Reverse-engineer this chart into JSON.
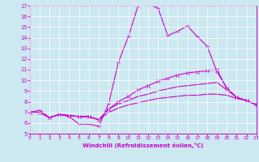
{
  "xlabel": "Windchill (Refroidissement éolien,°C)",
  "bg_color": "#cce8f0",
  "line_color": "#cc00cc",
  "xlim": [
    0,
    23
  ],
  "ylim": [
    5,
    17
  ],
  "xticks": [
    0,
    1,
    2,
    3,
    4,
    5,
    6,
    7,
    8,
    9,
    10,
    11,
    12,
    13,
    14,
    15,
    16,
    17,
    18,
    19,
    20,
    21,
    22,
    23
  ],
  "yticks": [
    5,
    6,
    7,
    8,
    9,
    10,
    11,
    12,
    13,
    14,
    15,
    16,
    17
  ],
  "series": [
    [
      7.0,
      7.2,
      6.5,
      6.8,
      6.6,
      5.9,
      5.9,
      5.7,
      7.8,
      11.7,
      14.1,
      17.0,
      17.1,
      16.8,
      14.2,
      14.6,
      15.1,
      14.1,
      13.2,
      10.8,
      9.3,
      8.4,
      8.1,
      7.7
    ],
    [
      7.0,
      7.0,
      6.5,
      6.8,
      6.7,
      6.6,
      6.6,
      6.3,
      7.3,
      8.0,
      8.5,
      9.1,
      9.5,
      9.9,
      10.2,
      10.5,
      10.7,
      10.8,
      10.9,
      11.0,
      9.2,
      8.4,
      8.1,
      7.7
    ],
    [
      7.0,
      7.0,
      6.5,
      6.8,
      6.7,
      6.6,
      6.6,
      6.3,
      7.3,
      7.8,
      8.1,
      8.5,
      8.7,
      9.0,
      9.2,
      9.4,
      9.5,
      9.6,
      9.7,
      9.8,
      9.1,
      8.4,
      8.1,
      7.7
    ],
    [
      7.0,
      7.0,
      6.5,
      6.8,
      6.7,
      6.6,
      6.6,
      6.3,
      7.0,
      7.4,
      7.7,
      7.9,
      8.1,
      8.3,
      8.4,
      8.5,
      8.6,
      8.6,
      8.7,
      8.7,
      8.6,
      8.3,
      8.1,
      7.7
    ]
  ]
}
